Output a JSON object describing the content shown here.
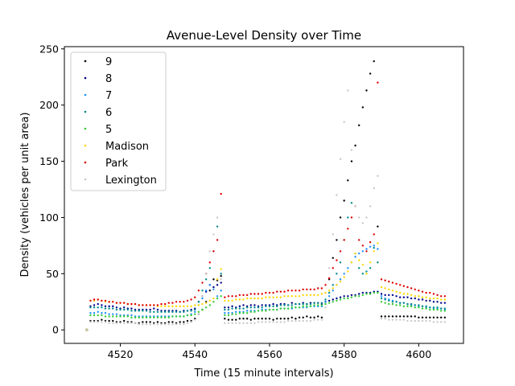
{
  "chart_data": {
    "type": "scatter",
    "title": "Avenue-Level Density over Time",
    "xlabel": "Time (15 minute intervals)",
    "ylabel": "Density (vehicles per unit area)",
    "xlim": [
      4505,
      4612
    ],
    "ylim": [
      -12,
      252
    ],
    "xticks": [
      4520,
      4540,
      4560,
      4580,
      4600
    ],
    "yticks": [
      0,
      50,
      100,
      150,
      200,
      250
    ],
    "legend_position": "upper-left",
    "grid": false,
    "x_start": 4511,
    "series": [
      {
        "name": "9",
        "color": "#000000",
        "values": [
          0,
          8,
          8,
          8,
          9,
          8,
          8,
          8,
          7,
          7,
          8,
          7,
          7,
          6,
          6,
          7,
          7,
          7,
          6,
          7,
          6,
          6,
          7,
          7,
          6,
          7,
          7,
          8,
          8,
          10,
          14,
          18,
          25,
          35,
          45,
          44,
          48,
          10,
          9,
          9,
          9,
          10,
          10,
          10,
          9,
          10,
          10,
          10,
          10,
          10,
          9,
          10,
          10,
          10,
          10,
          11,
          10,
          11,
          11,
          12,
          11,
          11,
          12,
          11,
          25,
          45,
          64,
          80,
          100,
          115,
          133,
          150,
          164,
          182,
          198,
          213,
          228,
          239,
          92,
          12,
          12,
          12,
          12,
          12,
          12,
          12,
          12,
          12,
          12,
          11,
          11,
          11,
          11,
          11,
          11,
          11,
          11
        ]
      },
      {
        "name": "8",
        "color": "#00008b",
        "values": [
          0,
          21,
          22,
          23,
          22,
          21,
          21,
          21,
          20,
          19,
          20,
          19,
          19,
          18,
          18,
          18,
          18,
          18,
          19,
          18,
          17,
          17,
          17,
          17,
          17,
          16,
          17,
          17,
          18,
          19,
          25,
          30,
          34,
          40,
          38,
          40,
          42,
          20,
          20,
          21,
          20,
          21,
          22,
          21,
          22,
          22,
          21,
          22,
          22,
          22,
          23,
          22,
          23,
          23,
          22,
          24,
          23,
          23,
          24,
          23,
          24,
          24,
          24,
          23,
          25,
          26,
          27,
          28,
          29,
          30,
          30,
          31,
          31,
          32,
          33,
          33,
          33,
          34,
          34,
          32,
          31,
          31,
          31,
          30,
          29,
          29,
          29,
          28,
          28,
          27,
          27,
          26,
          26,
          25,
          25,
          24,
          24
        ]
      },
      {
        "name": "7",
        "color": "#1e90ff",
        "values": [
          0,
          15,
          15,
          16,
          15,
          15,
          14,
          14,
          14,
          13,
          13,
          13,
          13,
          12,
          12,
          12,
          12,
          12,
          12,
          12,
          12,
          12,
          12,
          12,
          12,
          12,
          12,
          13,
          14,
          16,
          22,
          28,
          35,
          40,
          36,
          30,
          35,
          15,
          15,
          15,
          16,
          16,
          16,
          17,
          17,
          17,
          17,
          18,
          18,
          18,
          18,
          18,
          19,
          19,
          19,
          19,
          20,
          20,
          20,
          20,
          21,
          21,
          21,
          21,
          25,
          30,
          35,
          40,
          45,
          50,
          55,
          60,
          65,
          68,
          70,
          72,
          74,
          75,
          72,
          30,
          28,
          27,
          26,
          25,
          24,
          24,
          23,
          22,
          22,
          21,
          21,
          20,
          20,
          19,
          19,
          19,
          18
        ]
      },
      {
        "name": "6",
        "color": "#008b8b",
        "values": [
          0,
          20,
          20,
          20,
          20,
          19,
          19,
          19,
          18,
          18,
          18,
          18,
          17,
          17,
          17,
          17,
          17,
          16,
          16,
          16,
          16,
          16,
          16,
          16,
          16,
          16,
          16,
          17,
          17,
          18,
          25,
          35,
          45,
          55,
          70,
          92,
          50,
          18,
          18,
          19,
          19,
          19,
          19,
          20,
          20,
          20,
          20,
          20,
          21,
          21,
          21,
          21,
          22,
          22,
          22,
          22,
          23,
          23,
          23,
          23,
          23,
          24,
          24,
          24,
          27,
          33,
          40,
          50,
          60,
          80,
          100,
          113,
          68,
          55,
          50,
          52,
          55,
          73,
          60,
          28,
          27,
          26,
          25,
          25,
          24,
          24,
          23,
          23,
          22,
          22,
          21,
          21,
          20,
          20,
          20,
          19,
          19
        ]
      },
      {
        "name": "5",
        "color": "#32cd32",
        "values": [
          0,
          13,
          13,
          13,
          13,
          12,
          12,
          12,
          12,
          12,
          12,
          12,
          11,
          11,
          11,
          11,
          11,
          11,
          11,
          11,
          11,
          11,
          11,
          12,
          12,
          12,
          12,
          13,
          13,
          14,
          16,
          18,
          20,
          22,
          25,
          28,
          30,
          13,
          13,
          14,
          14,
          15,
          15,
          15,
          16,
          16,
          17,
          17,
          17,
          18,
          18,
          18,
          19,
          19,
          19,
          20,
          20,
          20,
          21,
          21,
          21,
          22,
          22,
          22,
          23,
          24,
          25,
          26,
          27,
          28,
          28,
          29,
          30,
          30,
          31,
          32,
          32,
          33,
          33,
          25,
          24,
          23,
          23,
          22,
          22,
          21,
          21,
          21,
          20,
          20,
          19,
          19,
          18,
          18,
          18,
          17,
          17
        ]
      },
      {
        "name": "Madison",
        "color": "#ffd700",
        "values": [
          0,
          26,
          26,
          27,
          26,
          25,
          25,
          25,
          24,
          24,
          24,
          23,
          23,
          23,
          22,
          22,
          22,
          22,
          22,
          21,
          21,
          21,
          21,
          21,
          21,
          21,
          21,
          21,
          21,
          22,
          22,
          23,
          24,
          26,
          28,
          45,
          54,
          26,
          26,
          26,
          27,
          27,
          27,
          28,
          28,
          28,
          28,
          28,
          29,
          29,
          29,
          29,
          29,
          30,
          30,
          30,
          30,
          30,
          31,
          31,
          31,
          31,
          31,
          32,
          33,
          35,
          37,
          40,
          43,
          47,
          52,
          60,
          68,
          62,
          58,
          50,
          60,
          70,
          77,
          38,
          37,
          36,
          35,
          34,
          33,
          32,
          32,
          31,
          30,
          30,
          29,
          29,
          28,
          28,
          28,
          27,
          27
        ]
      },
      {
        "name": "Park",
        "color": "#e00000",
        "values": [
          0,
          26,
          27,
          27,
          26,
          26,
          25,
          25,
          24,
          24,
          24,
          23,
          23,
          23,
          22,
          22,
          22,
          22,
          22,
          22,
          23,
          23,
          24,
          24,
          25,
          25,
          25,
          26,
          27,
          29,
          35,
          42,
          50,
          60,
          70,
          80,
          121,
          29,
          30,
          30,
          30,
          31,
          31,
          31,
          32,
          32,
          32,
          32,
          33,
          33,
          33,
          34,
          34,
          34,
          35,
          35,
          35,
          35,
          36,
          36,
          36,
          36,
          37,
          37,
          40,
          46,
          55,
          62,
          70,
          80,
          90,
          100,
          110,
          80,
          75,
          70,
          78,
          85,
          220,
          45,
          44,
          43,
          42,
          41,
          40,
          39,
          38,
          37,
          36,
          35,
          34,
          33,
          33,
          32,
          31,
          30,
          30
        ]
      },
      {
        "name": "Lexington",
        "color": "#c8c8c8",
        "values": [
          0,
          7,
          7,
          7,
          7,
          7,
          6,
          6,
          6,
          6,
          6,
          6,
          6,
          6,
          5,
          5,
          5,
          5,
          5,
          5,
          5,
          5,
          5,
          5,
          5,
          5,
          5,
          6,
          7,
          9,
          14,
          30,
          50,
          70,
          85,
          100,
          45,
          6,
          6,
          6,
          6,
          6,
          6,
          6,
          6,
          6,
          7,
          7,
          7,
          7,
          7,
          7,
          7,
          7,
          8,
          8,
          8,
          8,
          8,
          8,
          8,
          9,
          9,
          9,
          20,
          55,
          85,
          120,
          152,
          185,
          213,
          160,
          110,
          100,
          95,
          100,
          110,
          126,
          137,
          10,
          10,
          9,
          9,
          9,
          9,
          9,
          8,
          8,
          8,
          8,
          8,
          8,
          8,
          7,
          7,
          7,
          7
        ]
      }
    ]
  }
}
